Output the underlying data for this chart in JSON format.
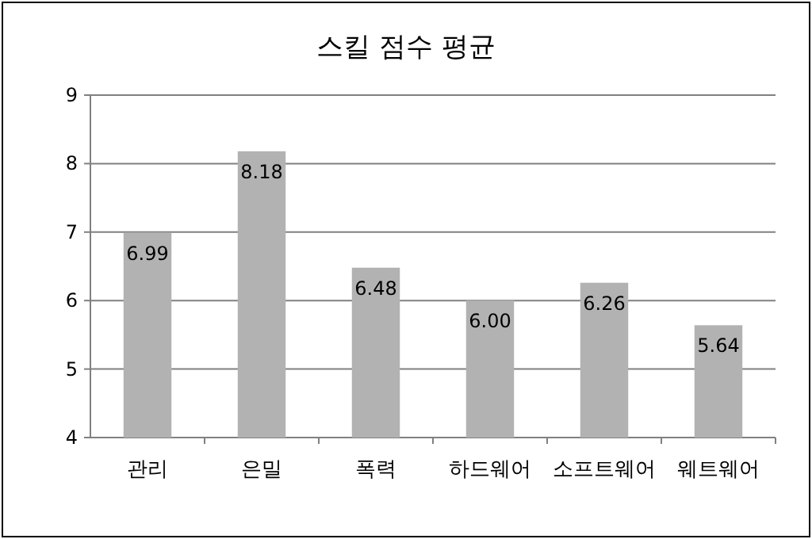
{
  "chart_data": {
    "type": "bar",
    "title": "스킬 점수 평균",
    "categories": [
      "관리",
      "은밀",
      "폭력",
      "하드웨어",
      "소프트웨어",
      "웨트웨어"
    ],
    "values": [
      6.99,
      8.18,
      6.48,
      6.0,
      6.26,
      5.64
    ],
    "value_labels": [
      "6.99",
      "8.18",
      "6.48",
      "6.00",
      "6.26",
      "5.64"
    ],
    "color": "#b2b2b2",
    "ylim": [
      4,
      9
    ],
    "yticks": [
      4,
      5,
      6,
      7,
      8,
      9
    ],
    "grid": "y"
  }
}
